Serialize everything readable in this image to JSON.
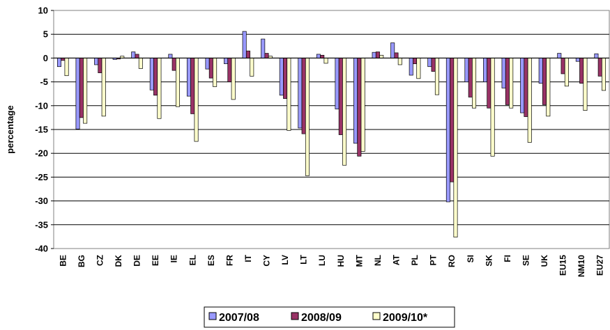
{
  "chart_data": {
    "type": "bar",
    "ylabel": "percentage",
    "ylim": [
      -40,
      10
    ],
    "yticks": [
      "10",
      "5",
      "0",
      "-5",
      "-10",
      "-15",
      "-20",
      "-25",
      "-30",
      "-35",
      "-40"
    ],
    "grid": true,
    "legend_position": "bottom",
    "categories": [
      "BE",
      "BG",
      "CZ",
      "DK",
      "DE",
      "EE",
      "IE",
      "EL",
      "ES",
      "FR",
      "IT",
      "CY",
      "LV",
      "LT",
      "LU",
      "HU",
      "MT",
      "NL",
      "AT",
      "PL",
      "PT",
      "RO",
      "SI",
      "SK",
      "FI",
      "SE",
      "UK",
      "EU15",
      "NM10",
      "EU27"
    ],
    "series": [
      {
        "name": "2007/08",
        "color": "#9999ff",
        "values": [
          -1.8,
          -14.9,
          -1.4,
          -0.3,
          1.3,
          -6.7,
          0.8,
          -8.0,
          -2.3,
          -1.2,
          5.6,
          4.0,
          -7.8,
          -14.7,
          0.8,
          -10.7,
          -17.9,
          1.2,
          3.2,
          -3.6,
          -1.8,
          -30.2,
          -5.0,
          -5.0,
          -6.3,
          -11.5,
          -5.3,
          1.0,
          -0.7,
          0.9
        ]
      },
      {
        "name": "2008/09",
        "color": "#993366",
        "values": [
          -0.5,
          -12.5,
          -3.1,
          -0.2,
          0.8,
          -7.8,
          -2.6,
          -11.7,
          -4.2,
          -5.0,
          1.5,
          1.0,
          -8.5,
          -15.9,
          0.6,
          -16.1,
          -20.6,
          1.3,
          1.1,
          -1.2,
          -2.8,
          -26.0,
          -8.2,
          -10.5,
          -9.8,
          -12.3,
          -9.8,
          -3.3,
          -5.3,
          -3.8
        ]
      },
      {
        "name": "2009/10*",
        "color": "#ffffcc",
        "values": [
          -3.7,
          -13.7,
          -12.2,
          0.4,
          -2.2,
          -12.7,
          -10.2,
          -17.5,
          -6.0,
          -8.7,
          -3.8,
          0.4,
          -15.2,
          -24.7,
          -1.1,
          -22.5,
          -19.6,
          0.6,
          -1.4,
          -4.3,
          -7.7,
          -37.6,
          -10.5,
          -20.6,
          -10.5,
          -17.7,
          -12.2,
          -5.9,
          -11.0,
          -6.8
        ]
      }
    ]
  }
}
